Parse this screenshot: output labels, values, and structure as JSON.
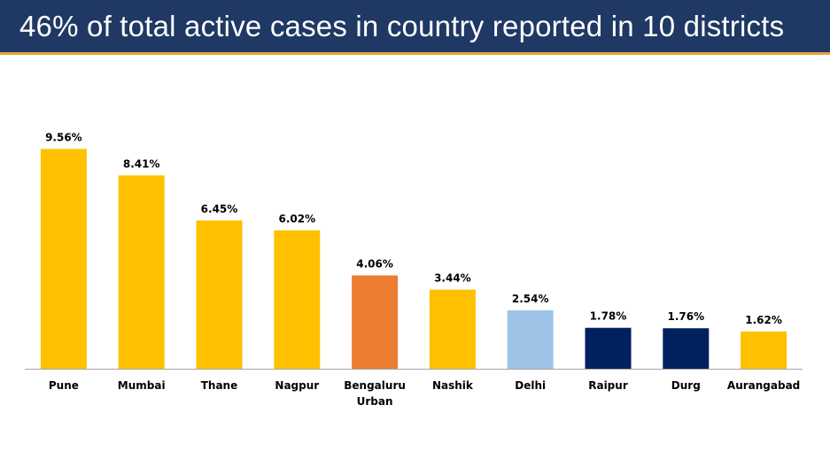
{
  "header": {
    "title": "46% of total active cases in country reported in 10 districts"
  },
  "colors": {
    "header_bg": "#1f3864",
    "header_accent": "#e8a33d",
    "axis": "#a6a6a6"
  },
  "chart_data": {
    "type": "bar",
    "title": "46% of total active cases in country reported in 10 districts",
    "xlabel": "",
    "ylabel": "",
    "ylim": [
      0,
      10
    ],
    "grid": false,
    "categories": [
      [
        "Pune"
      ],
      [
        "Mumbai"
      ],
      [
        "Thane"
      ],
      [
        "Nagpur"
      ],
      [
        "Bengaluru",
        "Urban"
      ],
      [
        "Nashik"
      ],
      [
        "Delhi"
      ],
      [
        "Raipur"
      ],
      [
        "Durg"
      ],
      [
        "Aurangabad"
      ]
    ],
    "values": [
      9.56,
      8.41,
      6.45,
      6.02,
      4.06,
      3.44,
      2.54,
      1.78,
      1.76,
      1.62
    ],
    "value_labels": [
      "9.56%",
      "8.41%",
      "6.45%",
      "6.02%",
      "4.06%",
      "3.44%",
      "2.54%",
      "1.78%",
      "1.76%",
      "1.62%"
    ],
    "bar_colors": [
      "#ffc000",
      "#ffc000",
      "#ffc000",
      "#ffc000",
      "#ed7d31",
      "#ffc000",
      "#9dc3e6",
      "#002060",
      "#002060",
      "#ffc000"
    ]
  }
}
